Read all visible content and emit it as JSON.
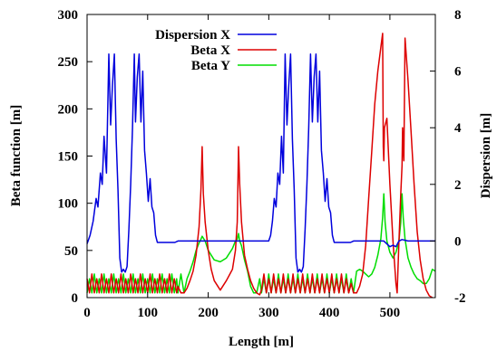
{
  "chart_data": {
    "type": "line",
    "xlabel": "Length [m]",
    "ylabel_left": "Beta function [m]",
    "ylabel_right": "Dispersion [m]",
    "xlim": [
      0,
      575
    ],
    "ylim_left": [
      0,
      300
    ],
    "ylim_right": [
      -2,
      8
    ],
    "xticks": [
      "0",
      "100",
      "200",
      "300",
      "400",
      "500"
    ],
    "yticks_left": [
      "0",
      "50",
      "100",
      "150",
      "200",
      "250",
      "300"
    ],
    "yticks_right": [
      "-2",
      "0",
      "2",
      "4",
      "6",
      "8"
    ],
    "grid": false,
    "legend_position": "top-right",
    "series": [
      {
        "name": "Dispersion X",
        "axis": "right",
        "color": "#0000dd",
        "x": [
          0,
          5,
          10,
          15,
          18,
          22,
          25,
          28,
          32,
          36,
          39,
          42,
          45,
          48,
          51,
          54,
          57,
          60,
          63,
          66,
          69,
          72,
          75,
          78,
          80,
          83,
          86,
          89,
          92,
          95,
          98,
          101,
          104,
          107,
          110,
          113,
          116,
          119,
          122,
          125,
          128,
          131,
          134,
          137,
          140,
          145,
          150,
          155,
          160,
          170,
          180,
          190,
          200,
          220,
          240,
          260,
          280,
          285,
          290,
          295,
          300,
          303,
          306,
          309,
          312,
          315,
          318,
          321,
          324,
          327,
          330,
          333,
          336,
          339,
          342,
          345,
          348,
          351,
          354,
          357,
          360,
          363,
          366,
          369,
          372,
          375,
          378,
          381,
          384,
          387,
          390,
          393,
          396,
          399,
          402,
          405,
          408,
          411,
          414,
          417,
          420,
          423,
          426,
          429,
          432,
          435,
          440,
          445,
          450,
          470,
          490,
          500,
          505,
          510,
          515,
          520,
          530,
          575
        ],
        "values": [
          -0.1,
          0.2,
          0.7,
          1.5,
          1.2,
          2.4,
          2.0,
          3.7,
          2.4,
          6.6,
          4.1,
          5.5,
          6.6,
          3.6,
          1.8,
          -0.6,
          -1.1,
          -1.0,
          -1.1,
          -0.9,
          0.4,
          2.0,
          4.0,
          6.6,
          4.2,
          5.8,
          6.6,
          4.2,
          6.0,
          3.2,
          2.4,
          1.4,
          2.2,
          1.2,
          1.0,
          0.2,
          -0.05,
          -0.05,
          -0.05,
          -0.05,
          -0.05,
          -0.05,
          -0.05,
          -0.05,
          -0.05,
          -0.05,
          0.0,
          0.0,
          0.0,
          0.0,
          0.0,
          0.0,
          0.0,
          0.0,
          0.0,
          0.0,
          0.0,
          0.0,
          0.0,
          0.0,
          0.0,
          0.2,
          0.7,
          1.5,
          1.2,
          2.4,
          2.0,
          3.7,
          2.4,
          6.6,
          4.1,
          5.5,
          6.6,
          3.6,
          1.8,
          -0.6,
          -1.1,
          -1.0,
          -1.1,
          -0.9,
          0.4,
          2.0,
          4.0,
          6.6,
          4.2,
          5.8,
          6.6,
          4.2,
          6.0,
          3.2,
          2.4,
          1.4,
          2.2,
          1.2,
          1.0,
          0.2,
          -0.05,
          -0.05,
          -0.05,
          -0.05,
          -0.05,
          -0.05,
          -0.05,
          -0.05,
          -0.05,
          -0.05,
          0.0,
          0.0,
          0.0,
          0.0,
          0.0,
          -0.2,
          -0.15,
          -0.2,
          0.0,
          0.05,
          0.0,
          0.0
        ]
      },
      {
        "name": "Beta X",
        "axis": "left",
        "color": "#dd0000",
        "x": [
          0,
          4,
          8,
          12,
          16,
          20,
          24,
          28,
          32,
          36,
          40,
          44,
          48,
          52,
          56,
          60,
          64,
          68,
          72,
          76,
          80,
          84,
          88,
          92,
          96,
          100,
          104,
          108,
          112,
          116,
          120,
          124,
          128,
          132,
          136,
          140,
          144,
          148,
          150,
          155,
          160,
          165,
          170,
          175,
          180,
          185,
          188,
          190,
          192,
          195,
          200,
          205,
          210,
          220,
          230,
          240,
          245,
          248,
          250,
          252,
          255,
          260,
          265,
          270,
          275,
          280,
          285,
          288,
          292,
          296,
          300,
          304,
          308,
          312,
          316,
          320,
          324,
          328,
          332,
          336,
          340,
          344,
          348,
          352,
          356,
          360,
          364,
          368,
          372,
          376,
          380,
          384,
          388,
          392,
          396,
          400,
          404,
          408,
          412,
          416,
          420,
          424,
          428,
          432,
          436,
          440,
          445,
          450,
          455,
          460,
          465,
          470,
          475,
          480,
          485,
          488,
          489,
          490,
          491,
          495,
          500,
          505,
          510,
          512,
          515,
          518,
          520,
          521,
          522,
          523,
          525,
          530,
          535,
          540,
          545,
          550,
          555,
          560,
          565,
          570
        ],
        "values": [
          20,
          5,
          25,
          5,
          20,
          5,
          25,
          5,
          20,
          5,
          25,
          5,
          20,
          5,
          25,
          5,
          20,
          5,
          25,
          5,
          20,
          5,
          25,
          5,
          20,
          5,
          25,
          5,
          20,
          5,
          25,
          5,
          20,
          5,
          25,
          5,
          20,
          5,
          12,
          5,
          5,
          10,
          18,
          28,
          45,
          75,
          115,
          160,
          110,
          80,
          50,
          30,
          18,
          8,
          18,
          30,
          50,
          80,
          160,
          120,
          80,
          45,
          30,
          18,
          10,
          5,
          3,
          8,
          25,
          5,
          20,
          5,
          25,
          5,
          20,
          5,
          25,
          5,
          20,
          5,
          25,
          5,
          20,
          5,
          25,
          5,
          20,
          5,
          25,
          5,
          20,
          5,
          25,
          5,
          20,
          5,
          25,
          5,
          20,
          5,
          25,
          5,
          20,
          5,
          15,
          5,
          5,
          12,
          25,
          55,
          105,
          155,
          205,
          240,
          265,
          280,
          160,
          145,
          180,
          190,
          120,
          60,
          15,
          5,
          60,
          110,
          140,
          180,
          160,
          145,
          275,
          230,
          175,
          120,
          70,
          40,
          20,
          8,
          2,
          0
        ]
      },
      {
        "name": "Beta Y",
        "axis": "left",
        "color": "#00dd00",
        "x": [
          0,
          4,
          8,
          12,
          16,
          20,
          24,
          28,
          32,
          36,
          40,
          44,
          48,
          52,
          56,
          60,
          64,
          68,
          72,
          76,
          80,
          84,
          88,
          92,
          96,
          100,
          104,
          108,
          112,
          116,
          120,
          124,
          128,
          132,
          136,
          140,
          144,
          148,
          150,
          155,
          160,
          165,
          170,
          175,
          180,
          185,
          188,
          190,
          195,
          200,
          210,
          220,
          230,
          240,
          245,
          248,
          250,
          252,
          255,
          260,
          265,
          270,
          275,
          280,
          285,
          288,
          292,
          296,
          300,
          304,
          308,
          312,
          316,
          320,
          324,
          328,
          332,
          336,
          340,
          344,
          348,
          352,
          356,
          360,
          364,
          368,
          372,
          376,
          380,
          384,
          388,
          392,
          396,
          400,
          404,
          408,
          412,
          416,
          420,
          424,
          428,
          432,
          436,
          440,
          445,
          450,
          455,
          460,
          465,
          470,
          475,
          480,
          485,
          488,
          490,
          492,
          495,
          500,
          505,
          510,
          515,
          518,
          520,
          522,
          525,
          530,
          535,
          540,
          545,
          550,
          555,
          560,
          565,
          570,
          575
        ],
        "values": [
          5,
          20,
          5,
          25,
          5,
          20,
          5,
          25,
          5,
          20,
          5,
          25,
          5,
          20,
          5,
          25,
          5,
          20,
          5,
          25,
          5,
          20,
          5,
          25,
          5,
          20,
          5,
          25,
          5,
          20,
          5,
          25,
          5,
          20,
          5,
          25,
          5,
          20,
          5,
          25,
          5,
          20,
          28,
          38,
          50,
          58,
          62,
          65,
          60,
          50,
          40,
          38,
          42,
          52,
          60,
          62,
          68,
          60,
          55,
          40,
          28,
          12,
          5,
          5,
          20,
          5,
          20,
          5,
          25,
          5,
          20,
          5,
          25,
          5,
          20,
          5,
          25,
          5,
          20,
          5,
          25,
          5,
          20,
          5,
          25,
          5,
          20,
          5,
          25,
          5,
          20,
          5,
          25,
          5,
          20,
          5,
          25,
          5,
          20,
          5,
          25,
          5,
          20,
          5,
          28,
          30,
          28,
          25,
          22,
          25,
          32,
          45,
          62,
          85,
          110,
          80,
          60,
          48,
          42,
          48,
          60,
          80,
          110,
          85,
          62,
          42,
          32,
          25,
          20,
          18,
          15,
          15,
          20,
          30,
          28
        ]
      }
    ]
  }
}
